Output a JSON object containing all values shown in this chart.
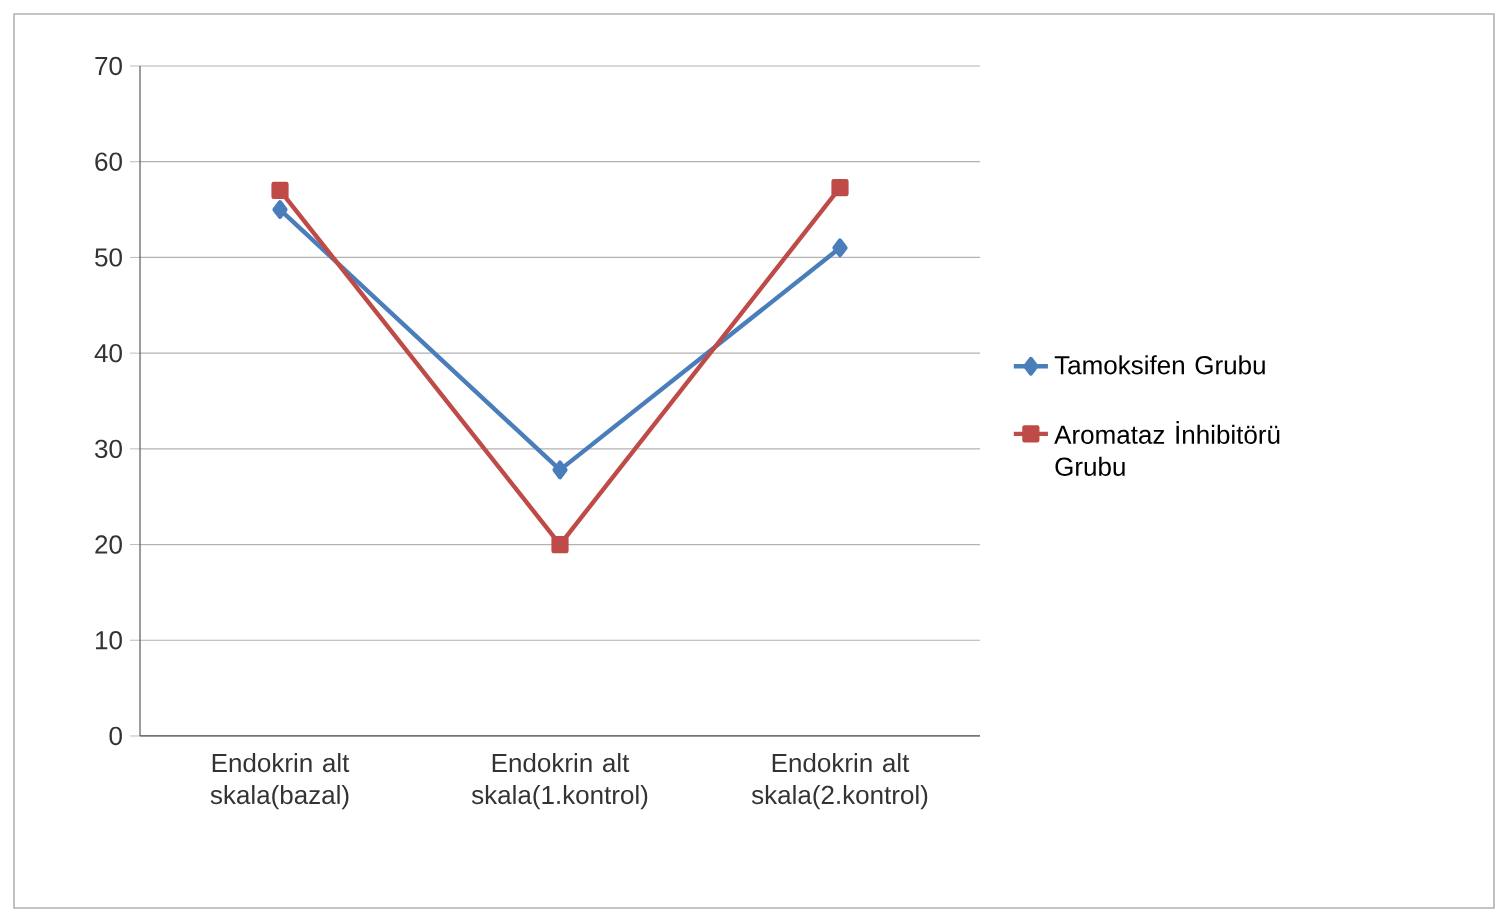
{
  "chart_data": {
    "type": "line",
    "categories": [
      "Endokrin alt skala(bazal)",
      "Endokrin alt skala(1.kontrol)",
      "Endokrin alt skala(2.kontrol)"
    ],
    "series": [
      {
        "name": "Tamoksifen Grubu",
        "color": "#4a7ebb",
        "marker": "diamond",
        "values": [
          55,
          27.8,
          51
        ]
      },
      {
        "name": "Aromataz İnhibitörü Grubu",
        "color": "#be4b48",
        "marker": "square",
        "values": [
          57,
          20,
          57.3
        ]
      }
    ],
    "ylim": [
      0,
      70
    ],
    "yticks": [
      0,
      10,
      20,
      30,
      40,
      50,
      60,
      70
    ],
    "grid": "y",
    "legend": "right"
  }
}
